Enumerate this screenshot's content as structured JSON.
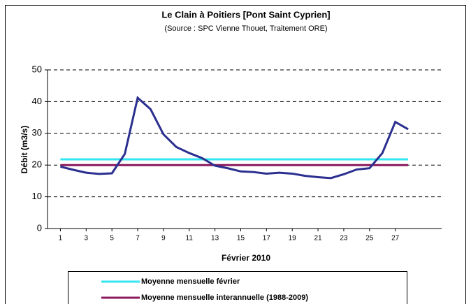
{
  "chart_data": {
    "type": "line",
    "title": "Le Clain à Poitiers [Pont Saint Cyprien]",
    "subtitle": "(Source : SPC Vienne Thouet, Traitement ORE)",
    "x_label": "Février 2010",
    "y_label": "Débit (m3/s)",
    "x": [
      1,
      2,
      3,
      4,
      5,
      6,
      7,
      8,
      9,
      10,
      11,
      12,
      13,
      14,
      15,
      16,
      17,
      18,
      19,
      20,
      21,
      22,
      23,
      24,
      25,
      26,
      27,
      28
    ],
    "xlim": [
      0,
      30.6
    ],
    "xticks": [
      1,
      3,
      5,
      7,
      9,
      11,
      13,
      15,
      17,
      19,
      21,
      23,
      25,
      27
    ],
    "ylim": [
      0,
      50
    ],
    "yticks": [
      0,
      10,
      20,
      30,
      40,
      50
    ],
    "grid": true,
    "series": [
      {
        "color": "#2b2f8f",
        "values": [
          19.5,
          18.5,
          17.6,
          17.2,
          17.4,
          23.5,
          41.2,
          37.6,
          29.7,
          25.7,
          23.8,
          22.2,
          19.8,
          19.0,
          18.0,
          17.8,
          17.3,
          17.6,
          17.3,
          16.6,
          16.2,
          15.9,
          17.1,
          18.6,
          19.0,
          23.8,
          33.6,
          31.3
        ]
      },
      {
        "name": "Moyenne mensuelle février",
        "color": "#33e6f0",
        "values": [
          21.8,
          21.8,
          21.8,
          21.8,
          21.8,
          21.8,
          21.8,
          21.8,
          21.8,
          21.8,
          21.8,
          21.8,
          21.8,
          21.8,
          21.8,
          21.8,
          21.8,
          21.8,
          21.8,
          21.8,
          21.8,
          21.8,
          21.8,
          21.8,
          21.8,
          21.8,
          21.8,
          21.8
        ]
      },
      {
        "name": "Moyenne mensuelle interannuelle (1988-2009)",
        "color": "#8b1a5c",
        "values": [
          20.0,
          20.0,
          20.0,
          20.0,
          20.0,
          20.0,
          20.0,
          20.0,
          20.0,
          20.0,
          20.0,
          20.0,
          20.0,
          20.0,
          20.0,
          20.0,
          20.0,
          20.0,
          20.0,
          20.0,
          20.0,
          20.0,
          20.0,
          20.0,
          20.0,
          20.0,
          20.0,
          20.0
        ]
      }
    ]
  }
}
